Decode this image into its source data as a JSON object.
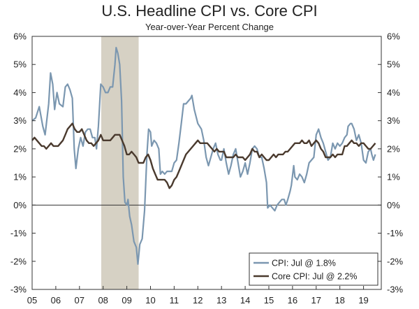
{
  "chart_data": {
    "type": "line",
    "title": "U.S. Headline CPI vs. Core CPI",
    "subtitle": "Year-over-Year Percent Change",
    "xlabel": "",
    "ylabel": "",
    "xlim": [
      2005,
      2019.75
    ],
    "ylim": [
      -3,
      6
    ],
    "y_ticks": [
      -3,
      -2,
      -1,
      0,
      1,
      2,
      3,
      4,
      5,
      6
    ],
    "y_tick_labels": [
      "-3%",
      "-2%",
      "-1%",
      "0%",
      "1%",
      "2%",
      "3%",
      "4%",
      "5%",
      "6%"
    ],
    "x_ticks": [
      2005,
      2006,
      2007,
      2008,
      2009,
      2010,
      2011,
      2012,
      2013,
      2014,
      2015,
      2016,
      2017,
      2018,
      2019
    ],
    "x_tick_labels": [
      "05",
      "06",
      "07",
      "08",
      "09",
      "10",
      "11",
      "12",
      "13",
      "14",
      "15",
      "16",
      "17",
      "18",
      "19"
    ],
    "recession": {
      "start": 2007.92,
      "end": 2009.5,
      "color": "#d6d1c4"
    },
    "legend": {
      "placement": "bottom-right"
    },
    "series": [
      {
        "name": "CPI: Jul @ 1.8%",
        "color": "#7b97b0",
        "points": [
          [
            2005.0,
            3.0
          ],
          [
            2005.15,
            3.1
          ],
          [
            2005.3,
            3.5
          ],
          [
            2005.45,
            2.8
          ],
          [
            2005.55,
            2.5
          ],
          [
            2005.7,
            3.6
          ],
          [
            2005.78,
            4.7
          ],
          [
            2005.87,
            4.3
          ],
          [
            2005.95,
            3.4
          ],
          [
            2006.05,
            4.0
          ],
          [
            2006.15,
            3.6
          ],
          [
            2006.3,
            3.5
          ],
          [
            2006.4,
            4.2
          ],
          [
            2006.5,
            4.3
          ],
          [
            2006.6,
            4.1
          ],
          [
            2006.7,
            3.8
          ],
          [
            2006.78,
            2.0
          ],
          [
            2006.85,
            1.3
          ],
          [
            2006.95,
            2.0
          ],
          [
            2007.05,
            2.4
          ],
          [
            2007.15,
            2.1
          ],
          [
            2007.25,
            2.6
          ],
          [
            2007.35,
            2.7
          ],
          [
            2007.45,
            2.7
          ],
          [
            2007.55,
            2.4
          ],
          [
            2007.65,
            2.4
          ],
          [
            2007.72,
            2.0
          ],
          [
            2007.8,
            2.8
          ],
          [
            2007.9,
            4.3
          ],
          [
            2008.0,
            4.2
          ],
          [
            2008.1,
            4.0
          ],
          [
            2008.2,
            4.0
          ],
          [
            2008.3,
            4.2
          ],
          [
            2008.4,
            4.2
          ],
          [
            2008.5,
            5.0
          ],
          [
            2008.55,
            5.6
          ],
          [
            2008.62,
            5.4
          ],
          [
            2008.7,
            5.0
          ],
          [
            2008.78,
            3.7
          ],
          [
            2008.85,
            1.0
          ],
          [
            2008.92,
            0.1
          ],
          [
            2009.0,
            0.0
          ],
          [
            2009.05,
            0.2
          ],
          [
            2009.12,
            -0.4
          ],
          [
            2009.2,
            -0.7
          ],
          [
            2009.3,
            -1.3
          ],
          [
            2009.4,
            -1.5
          ],
          [
            2009.47,
            -2.1
          ],
          [
            2009.55,
            -1.4
          ],
          [
            2009.65,
            -1.2
          ],
          [
            2009.75,
            -0.2
          ],
          [
            2009.85,
            1.8
          ],
          [
            2009.92,
            2.7
          ],
          [
            2010.0,
            2.6
          ],
          [
            2010.05,
            2.1
          ],
          [
            2010.15,
            2.3
          ],
          [
            2010.25,
            2.2
          ],
          [
            2010.35,
            2.0
          ],
          [
            2010.42,
            1.1
          ],
          [
            2010.5,
            1.2
          ],
          [
            2010.6,
            1.1
          ],
          [
            2010.7,
            1.2
          ],
          [
            2010.8,
            1.2
          ],
          [
            2010.9,
            1.2
          ],
          [
            2011.0,
            1.5
          ],
          [
            2011.1,
            1.6
          ],
          [
            2011.2,
            2.2
          ],
          [
            2011.3,
            2.9
          ],
          [
            2011.4,
            3.6
          ],
          [
            2011.5,
            3.6
          ],
          [
            2011.6,
            3.7
          ],
          [
            2011.7,
            3.8
          ],
          [
            2011.75,
            3.9
          ],
          [
            2011.85,
            3.4
          ],
          [
            2012.0,
            2.9
          ],
          [
            2012.15,
            2.7
          ],
          [
            2012.25,
            2.3
          ],
          [
            2012.35,
            1.7
          ],
          [
            2012.45,
            1.4
          ],
          [
            2012.55,
            1.7
          ],
          [
            2012.65,
            2.0
          ],
          [
            2012.75,
            2.2
          ],
          [
            2012.85,
            1.8
          ],
          [
            2012.95,
            1.6
          ],
          [
            2013.0,
            1.6
          ],
          [
            2013.1,
            2.0
          ],
          [
            2013.2,
            1.5
          ],
          [
            2013.3,
            1.1
          ],
          [
            2013.4,
            1.4
          ],
          [
            2013.5,
            1.8
          ],
          [
            2013.6,
            2.0
          ],
          [
            2013.7,
            1.5
          ],
          [
            2013.8,
            1.0
          ],
          [
            2013.9,
            1.2
          ],
          [
            2014.0,
            1.5
          ],
          [
            2014.1,
            1.1
          ],
          [
            2014.2,
            1.5
          ],
          [
            2014.3,
            2.0
          ],
          [
            2014.4,
            2.1
          ],
          [
            2014.5,
            2.0
          ],
          [
            2014.6,
            1.7
          ],
          [
            2014.7,
            1.7
          ],
          [
            2014.8,
            1.3
          ],
          [
            2014.9,
            0.8
          ],
          [
            2014.95,
            -0.1
          ],
          [
            2015.05,
            0.0
          ],
          [
            2015.15,
            -0.1
          ],
          [
            2015.25,
            -0.2
          ],
          [
            2015.35,
            0.0
          ],
          [
            2015.45,
            0.1
          ],
          [
            2015.55,
            0.2
          ],
          [
            2015.65,
            0.2
          ],
          [
            2015.72,
            0.0
          ],
          [
            2015.8,
            0.2
          ],
          [
            2015.9,
            0.5
          ],
          [
            2015.95,
            0.7
          ],
          [
            2016.05,
            1.4
          ],
          [
            2016.1,
            1.0
          ],
          [
            2016.2,
            0.9
          ],
          [
            2016.3,
            1.1
          ],
          [
            2016.4,
            1.0
          ],
          [
            2016.5,
            0.8
          ],
          [
            2016.6,
            1.1
          ],
          [
            2016.7,
            1.5
          ],
          [
            2016.8,
            1.6
          ],
          [
            2016.9,
            1.7
          ],
          [
            2017.0,
            2.5
          ],
          [
            2017.1,
            2.7
          ],
          [
            2017.2,
            2.4
          ],
          [
            2017.3,
            2.2
          ],
          [
            2017.4,
            1.9
          ],
          [
            2017.5,
            1.6
          ],
          [
            2017.6,
            1.7
          ],
          [
            2017.7,
            2.2
          ],
          [
            2017.8,
            2.0
          ],
          [
            2017.9,
            2.2
          ],
          [
            2018.0,
            2.1
          ],
          [
            2018.1,
            2.2
          ],
          [
            2018.2,
            2.4
          ],
          [
            2018.3,
            2.5
          ],
          [
            2018.35,
            2.8
          ],
          [
            2018.45,
            2.9
          ],
          [
            2018.5,
            2.9
          ],
          [
            2018.6,
            2.7
          ],
          [
            2018.7,
            2.3
          ],
          [
            2018.8,
            2.5
          ],
          [
            2018.9,
            2.2
          ],
          [
            2019.0,
            1.6
          ],
          [
            2019.1,
            1.5
          ],
          [
            2019.2,
            1.9
          ],
          [
            2019.3,
            2.0
          ],
          [
            2019.35,
            1.8
          ],
          [
            2019.42,
            1.6
          ],
          [
            2019.5,
            1.8
          ]
        ]
      },
      {
        "name": "Core CPI: Jul @ 2.2%",
        "color": "#4a3a2e",
        "points": [
          [
            2005.0,
            2.3
          ],
          [
            2005.1,
            2.4
          ],
          [
            2005.2,
            2.3
          ],
          [
            2005.3,
            2.2
          ],
          [
            2005.4,
            2.1
          ],
          [
            2005.5,
            2.1
          ],
          [
            2005.6,
            2.0
          ],
          [
            2005.7,
            2.1
          ],
          [
            2005.8,
            2.2
          ],
          [
            2005.9,
            2.1
          ],
          [
            2006.0,
            2.1
          ],
          [
            2006.1,
            2.1
          ],
          [
            2006.2,
            2.2
          ],
          [
            2006.3,
            2.3
          ],
          [
            2006.4,
            2.5
          ],
          [
            2006.5,
            2.7
          ],
          [
            2006.6,
            2.8
          ],
          [
            2006.7,
            2.9
          ],
          [
            2006.8,
            2.7
          ],
          [
            2006.9,
            2.6
          ],
          [
            2007.0,
            2.6
          ],
          [
            2007.1,
            2.7
          ],
          [
            2007.2,
            2.5
          ],
          [
            2007.3,
            2.3
          ],
          [
            2007.4,
            2.2
          ],
          [
            2007.5,
            2.2
          ],
          [
            2007.6,
            2.1
          ],
          [
            2007.7,
            2.2
          ],
          [
            2007.8,
            2.3
          ],
          [
            2007.9,
            2.5
          ],
          [
            2008.0,
            2.3
          ],
          [
            2008.1,
            2.3
          ],
          [
            2008.2,
            2.3
          ],
          [
            2008.3,
            2.3
          ],
          [
            2008.4,
            2.4
          ],
          [
            2008.5,
            2.5
          ],
          [
            2008.6,
            2.5
          ],
          [
            2008.7,
            2.5
          ],
          [
            2008.8,
            2.3
          ],
          [
            2008.9,
            2.1
          ],
          [
            2009.0,
            1.8
          ],
          [
            2009.1,
            1.8
          ],
          [
            2009.2,
            1.9
          ],
          [
            2009.3,
            1.8
          ],
          [
            2009.4,
            1.7
          ],
          [
            2009.5,
            1.5
          ],
          [
            2009.6,
            1.5
          ],
          [
            2009.7,
            1.5
          ],
          [
            2009.8,
            1.7
          ],
          [
            2009.9,
            1.8
          ],
          [
            2010.0,
            1.6
          ],
          [
            2010.1,
            1.3
          ],
          [
            2010.2,
            1.1
          ],
          [
            2010.3,
            0.9
          ],
          [
            2010.4,
            0.9
          ],
          [
            2010.5,
            0.9
          ],
          [
            2010.6,
            0.9
          ],
          [
            2010.7,
            0.8
          ],
          [
            2010.8,
            0.6
          ],
          [
            2010.9,
            0.7
          ],
          [
            2011.0,
            0.9
          ],
          [
            2011.1,
            1.0
          ],
          [
            2011.2,
            1.2
          ],
          [
            2011.3,
            1.4
          ],
          [
            2011.4,
            1.6
          ],
          [
            2011.5,
            1.8
          ],
          [
            2011.6,
            1.9
          ],
          [
            2011.7,
            2.0
          ],
          [
            2011.8,
            2.1
          ],
          [
            2011.9,
            2.2
          ],
          [
            2012.0,
            2.3
          ],
          [
            2012.1,
            2.2
          ],
          [
            2012.2,
            2.2
          ],
          [
            2012.3,
            2.2
          ],
          [
            2012.4,
            2.2
          ],
          [
            2012.5,
            2.1
          ],
          [
            2012.6,
            2.0
          ],
          [
            2012.7,
            1.9
          ],
          [
            2012.8,
            2.0
          ],
          [
            2012.9,
            1.9
          ],
          [
            2013.0,
            1.9
          ],
          [
            2013.1,
            1.9
          ],
          [
            2013.2,
            1.7
          ],
          [
            2013.3,
            1.7
          ],
          [
            2013.4,
            1.7
          ],
          [
            2013.5,
            1.7
          ],
          [
            2013.6,
            1.8
          ],
          [
            2013.7,
            1.7
          ],
          [
            2013.8,
            1.7
          ],
          [
            2013.9,
            1.7
          ],
          [
            2014.0,
            1.6
          ],
          [
            2014.1,
            1.7
          ],
          [
            2014.2,
            1.8
          ],
          [
            2014.3,
            2.0
          ],
          [
            2014.4,
            1.9
          ],
          [
            2014.5,
            1.9
          ],
          [
            2014.6,
            1.7
          ],
          [
            2014.7,
            1.8
          ],
          [
            2014.8,
            1.7
          ],
          [
            2014.9,
            1.6
          ],
          [
            2015.0,
            1.6
          ],
          [
            2015.1,
            1.7
          ],
          [
            2015.2,
            1.8
          ],
          [
            2015.3,
            1.7
          ],
          [
            2015.4,
            1.8
          ],
          [
            2015.5,
            1.8
          ],
          [
            2015.6,
            1.8
          ],
          [
            2015.7,
            1.9
          ],
          [
            2015.8,
            1.9
          ],
          [
            2015.9,
            2.0
          ],
          [
            2016.0,
            2.1
          ],
          [
            2016.1,
            2.2
          ],
          [
            2016.2,
            2.2
          ],
          [
            2016.3,
            2.2
          ],
          [
            2016.4,
            2.3
          ],
          [
            2016.5,
            2.2
          ],
          [
            2016.6,
            2.2
          ],
          [
            2016.7,
            2.3
          ],
          [
            2016.8,
            2.1
          ],
          [
            2016.9,
            2.2
          ],
          [
            2017.0,
            2.3
          ],
          [
            2017.1,
            2.2
          ],
          [
            2017.2,
            2.0
          ],
          [
            2017.3,
            1.9
          ],
          [
            2017.4,
            1.7
          ],
          [
            2017.5,
            1.7
          ],
          [
            2017.6,
            1.7
          ],
          [
            2017.7,
            1.8
          ],
          [
            2017.8,
            1.7
          ],
          [
            2017.9,
            1.8
          ],
          [
            2018.0,
            1.8
          ],
          [
            2018.1,
            1.8
          ],
          [
            2018.2,
            2.1
          ],
          [
            2018.3,
            2.1
          ],
          [
            2018.4,
            2.2
          ],
          [
            2018.5,
            2.3
          ],
          [
            2018.6,
            2.2
          ],
          [
            2018.7,
            2.2
          ],
          [
            2018.8,
            2.1
          ],
          [
            2018.9,
            2.2
          ],
          [
            2019.0,
            2.2
          ],
          [
            2019.1,
            2.1
          ],
          [
            2019.2,
            2.0
          ],
          [
            2019.3,
            2.0
          ],
          [
            2019.4,
            2.1
          ],
          [
            2019.5,
            2.2
          ]
        ]
      }
    ]
  }
}
